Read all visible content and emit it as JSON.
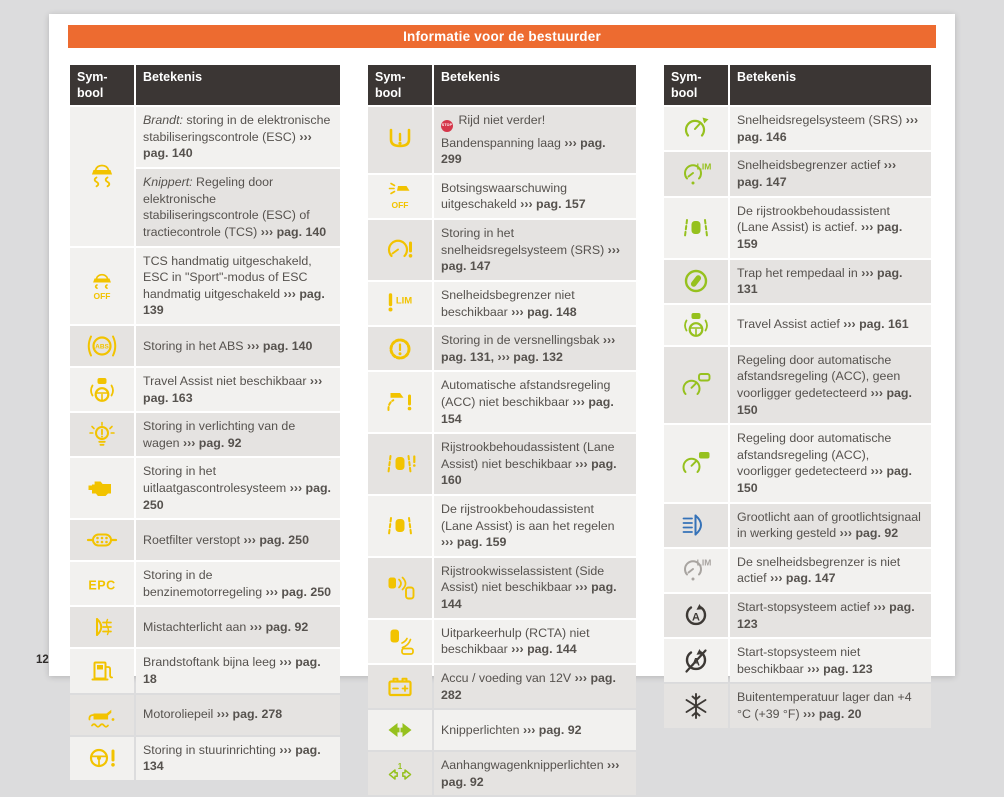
{
  "page_number": "12",
  "banner": {
    "title": "Informatie voor de bestuurder"
  },
  "table_header": {
    "symbol_line1": "Sym-",
    "symbol_line2": "bool",
    "meaning": "Betekenis"
  },
  "stop_badge_label": "STOP",
  "colors": {
    "accent_orange": "#ED6B30",
    "header_bg": "#3B3634",
    "row_light": "#F2F1EF",
    "row_dark": "#E5E3E1",
    "text": "#56524E",
    "yellow": "#F2C300",
    "green": "#96C11E",
    "blue": "#3572B8",
    "dark": "#3D3935",
    "gray": "#A8A4A0",
    "stop_red": "#D6374B"
  },
  "tables": [
    {
      "name": "driver-info-column-1",
      "stripe_offset": 0,
      "rows": [
        {
          "icon": "esc-icon",
          "color": "yellow",
          "span": 2,
          "lines": [
            [
              {
                "t": "Brandt:",
                "i": true
              },
              {
                "t": " storing in de elektronische stabiliseringscontrole (ESC) "
              },
              {
                "t": "››› pag. 140",
                "b": true
              }
            ]
          ]
        },
        {
          "sub": true,
          "lines": [
            [
              {
                "t": "Knippert:",
                "i": true
              },
              {
                "t": " Regeling door elektronische stabiliseringscontrole (ESC) of tractiecontrole (TCS) "
              },
              {
                "t": "››› pag. 140",
                "b": true
              }
            ]
          ]
        },
        {
          "icon": "esc-off-icon",
          "color": "yellow",
          "lines": [
            [
              {
                "t": "TCS handmatig uitgeschakeld, ESC in \"Sport\"-modus of ESC handmatig uitgeschakeld "
              },
              {
                "t": "››› pag. 139",
                "b": true
              }
            ]
          ]
        },
        {
          "icon": "abs-icon",
          "color": "yellow",
          "lines": [
            [
              {
                "t": "Storing in het ABS "
              },
              {
                "t": "››› pag. 140",
                "b": true
              }
            ]
          ]
        },
        {
          "icon": "travel-assist-icon",
          "color": "yellow",
          "lines": [
            [
              {
                "t": "Travel Assist niet beschikbaar "
              },
              {
                "t": "››› pag. 163",
                "b": true
              }
            ]
          ]
        },
        {
          "icon": "lights-fault-icon",
          "color": "yellow",
          "lines": [
            [
              {
                "t": "Storing in verlichting van de wagen "
              },
              {
                "t": "››› pag. 92",
                "b": true
              }
            ]
          ]
        },
        {
          "icon": "check-engine-icon",
          "color": "yellow",
          "lines": [
            [
              {
                "t": "Storing in het uitlaatgascontrolesysteem "
              },
              {
                "t": "››› pag. 250",
                "b": true
              }
            ]
          ]
        },
        {
          "icon": "particulate-filter-icon",
          "color": "yellow",
          "lines": [
            [
              {
                "t": "Roetfilter verstopt "
              },
              {
                "t": "››› pag. 250",
                "b": true
              }
            ]
          ]
        },
        {
          "icon": "epc-icon",
          "color": "yellow",
          "lines": [
            [
              {
                "t": "Storing in de benzinemotorregeling "
              },
              {
                "t": "››› pag. 250",
                "b": true
              }
            ]
          ]
        },
        {
          "icon": "rear-fog-icon",
          "color": "yellow",
          "lines": [
            [
              {
                "t": "Mistachterlicht aan "
              },
              {
                "t": "››› pag. 92",
                "b": true
              }
            ]
          ]
        },
        {
          "icon": "fuel-low-icon",
          "color": "yellow",
          "lines": [
            [
              {
                "t": "Brandstoftank bijna leeg "
              },
              {
                "t": "››› pag. 18",
                "b": true
              }
            ]
          ]
        },
        {
          "icon": "oil-level-icon",
          "color": "yellow",
          "lines": [
            [
              {
                "t": "Motoroliepeil "
              },
              {
                "t": "››› pag. 278",
                "b": true
              }
            ]
          ]
        },
        {
          "icon": "steering-warning-icon",
          "color": "yellow",
          "lines": [
            [
              {
                "t": "Storing in stuurinrichting "
              },
              {
                "t": "››› pag. 134",
                "b": true
              }
            ]
          ]
        }
      ]
    },
    {
      "name": "driver-info-column-2",
      "stripe_offset": 1,
      "rows": [
        {
          "icon": "tyre-pressure-icon",
          "color": "yellow",
          "lines": [
            [
              {
                "badge": "stop-badge"
              },
              {
                "t": " Rijd niet verder!"
              }
            ],
            [
              {
                "t": "Bandenspanning laag "
              },
              {
                "t": "››› pag. 299",
                "b": true
              }
            ]
          ]
        },
        {
          "icon": "front-assist-off-icon",
          "color": "yellow",
          "lines": [
            [
              {
                "t": "Botsingswaarschuwing uitgeschakeld "
              },
              {
                "t": "››› pag. 157",
                "b": true
              }
            ]
          ]
        },
        {
          "icon": "cruise-fault-icon",
          "color": "yellow",
          "lines": [
            [
              {
                "t": "Storing in het snelheidsregelsysteem (SRS) "
              },
              {
                "t": "››› pag. 147",
                "b": true
              }
            ]
          ]
        },
        {
          "icon": "limiter-fault-icon",
          "color": "yellow",
          "lines": [
            [
              {
                "t": "Snelheidsbegrenzer niet beschikbaar "
              },
              {
                "t": "››› pag. 148",
                "b": true
              }
            ]
          ]
        },
        {
          "icon": "gearbox-fault-icon",
          "color": "yellow",
          "lines": [
            [
              {
                "t": "Storing in de versnellingsbak "
              },
              {
                "t": "››› pag. 131,",
                "b": true
              },
              {
                "t": " "
              },
              {
                "t": "››› pag. 132",
                "b": true
              }
            ]
          ]
        },
        {
          "icon": "acc-unavailable-icon",
          "color": "yellow",
          "lines": [
            [
              {
                "t": "Automatische afstandsregeling (ACC) niet beschikbaar "
              },
              {
                "t": "››› pag. 154",
                "b": true
              }
            ]
          ]
        },
        {
          "icon": "lane-assist-unavailable-icon",
          "color": "yellow",
          "lines": [
            [
              {
                "t": "Rijstrookbehoudassistent (Lane Assist) niet beschikbaar "
              },
              {
                "t": "››› pag. 160",
                "b": true
              }
            ]
          ]
        },
        {
          "icon": "lane-assist-active-icon",
          "color": "yellow",
          "lines": [
            [
              {
                "t": "De rijstrookbehoudassistent (Lane Assist) is aan het regelen "
              },
              {
                "t": "››› pag. 159",
                "b": true
              }
            ]
          ]
        },
        {
          "icon": "side-assist-icon",
          "color": "yellow",
          "lines": [
            [
              {
                "t": "Rijstrookwisselassistent (Side Assist) niet beschikbaar "
              },
              {
                "t": "››› pag. 144",
                "b": true
              }
            ]
          ]
        },
        {
          "icon": "rcta-icon",
          "color": "yellow",
          "lines": [
            [
              {
                "t": "Uitparkeerhulp (RCTA) niet beschikbaar "
              },
              {
                "t": "››› pag. 144",
                "b": true
              }
            ]
          ]
        },
        {
          "icon": "battery-icon",
          "color": "yellow",
          "lines": [
            [
              {
                "t": "Accu / voeding van 12V "
              },
              {
                "t": "››› pag. 282",
                "b": true
              }
            ]
          ]
        },
        {
          "icon": "turn-signals-icon",
          "color": "green",
          "lines": [
            [
              {
                "t": "Knipperlichten "
              },
              {
                "t": "››› pag. 92",
                "b": true
              }
            ]
          ]
        },
        {
          "icon": "trailer-turn-signals-icon",
          "color": "green",
          "lines": [
            [
              {
                "t": "Aanhangwagenknipperlichten "
              },
              {
                "t": "››› pag. 92",
                "b": true
              }
            ]
          ]
        }
      ]
    },
    {
      "name": "driver-info-column-3",
      "stripe_offset": 0,
      "rows": [
        {
          "icon": "cruise-active-icon",
          "color": "green",
          "lines": [
            [
              {
                "t": "Snelheidsregelsysteem (SRS) "
              },
              {
                "t": "››› pag. 146",
                "b": true
              }
            ]
          ]
        },
        {
          "icon": "limiter-active-icon",
          "color": "green",
          "lines": [
            [
              {
                "t": "Snelheidsbegrenzer actief "
              },
              {
                "t": "››› pag. 147",
                "b": true
              }
            ]
          ]
        },
        {
          "icon": "lane-assist-green-icon",
          "color": "green",
          "lines": [
            [
              {
                "t": "De rijstrookbehoudassistent (Lane Assist) is actief. "
              },
              {
                "t": "››› pag. 159",
                "b": true
              }
            ]
          ]
        },
        {
          "icon": "brake-pedal-icon",
          "color": "green",
          "lines": [
            [
              {
                "t": "Trap het rempedaal in "
              },
              {
                "t": "››› pag. 131",
                "b": true
              }
            ]
          ]
        },
        {
          "icon": "travel-assist-active-icon",
          "color": "green",
          "lines": [
            [
              {
                "t": "Travel Assist actief "
              },
              {
                "t": "››› pag. 161",
                "b": true
              }
            ]
          ]
        },
        {
          "icon": "acc-no-vehicle-icon",
          "color": "green",
          "lines": [
            [
              {
                "t": "Regeling door automatische afstandsregeling (ACC), geen voorligger gedetecteerd "
              },
              {
                "t": "››› pag. 150",
                "b": true
              }
            ]
          ]
        },
        {
          "icon": "acc-vehicle-icon",
          "color": "green",
          "lines": [
            [
              {
                "t": "Regeling door automatische afstandsregeling (ACC), voorligger gedetecteerd "
              },
              {
                "t": "››› pag. 150",
                "b": true
              }
            ]
          ]
        },
        {
          "icon": "high-beam-icon",
          "color": "blue",
          "lines": [
            [
              {
                "t": "Grootlicht aan of grootlichtsignaal in werking gesteld "
              },
              {
                "t": "››› pag. 92",
                "b": true
              }
            ]
          ]
        },
        {
          "icon": "limiter-inactive-icon",
          "color": "gray",
          "lines": [
            [
              {
                "t": "De snelheidsbegrenzer is niet actief "
              },
              {
                "t": "››› pag. 147",
                "b": true
              }
            ]
          ]
        },
        {
          "icon": "start-stop-icon",
          "color": "dark",
          "lines": [
            [
              {
                "t": "Start-stopsysteem actief "
              },
              {
                "t": "››› pag. 123",
                "b": true
              }
            ]
          ]
        },
        {
          "icon": "start-stop-off-icon",
          "color": "dark",
          "lines": [
            [
              {
                "t": "Start-stopsysteem niet beschikbaar "
              },
              {
                "t": "››› pag. 123",
                "b": true
              }
            ]
          ]
        },
        {
          "icon": "snowflake-icon",
          "color": "dark",
          "lines": [
            [
              {
                "t": "Buitentemperatuur lager dan +4 °C (+39 °F) "
              },
              {
                "t": "››› pag. 20",
                "b": true
              }
            ]
          ]
        }
      ]
    }
  ]
}
